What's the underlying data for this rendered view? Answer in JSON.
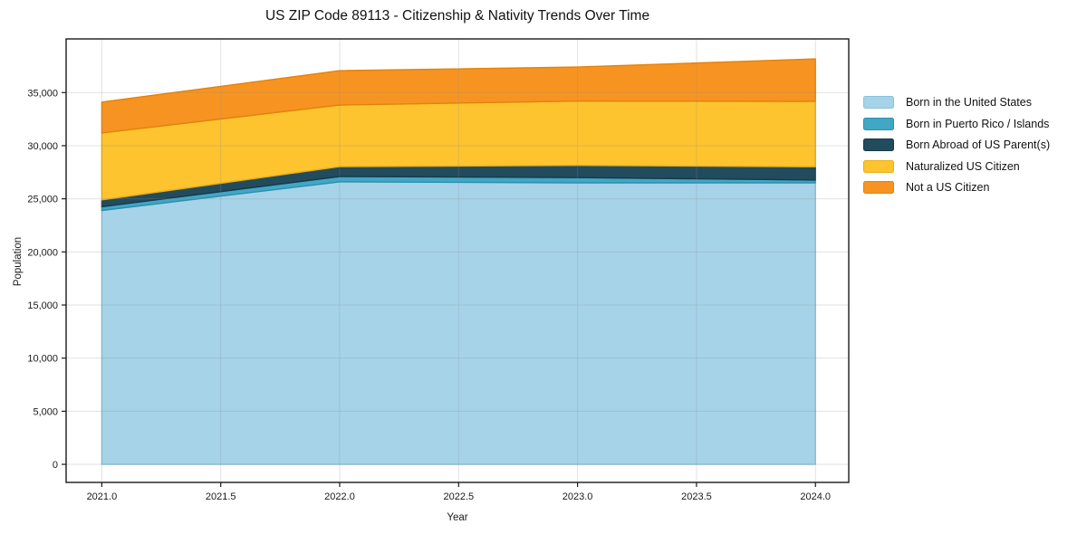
{
  "chart_data": {
    "type": "area",
    "stacked": true,
    "title": "US ZIP Code 89113 - Citizenship & Nativity Trends Over Time",
    "xlabel": "Year",
    "ylabel": "Population",
    "x": [
      2021,
      2022,
      2023,
      2024
    ],
    "series": [
      {
        "name": "Born in the United States",
        "color": "#a6d3e8",
        "edge": "#8ac2dc",
        "values": [
          23900,
          26600,
          26500,
          26500
        ]
      },
      {
        "name": "Born in Puerto Rico / Islands",
        "color": "#41a7c5",
        "edge": "#2b8fb0",
        "values": [
          350,
          500,
          500,
          270
        ]
      },
      {
        "name": "Born Abroad of US Parent(s)",
        "color": "#234b5e",
        "edge": "#16394a",
        "values": [
          650,
          930,
          1150,
          1250
        ]
      },
      {
        "name": "Naturalized US Citizen",
        "color": "#fdc42f",
        "edge": "#eaaf14",
        "values": [
          6300,
          5800,
          6050,
          6150
        ]
      },
      {
        "name": "Not a US Citizen",
        "color": "#f79421",
        "edge": "#e2820c",
        "values": [
          2900,
          3230,
          3200,
          4000
        ]
      }
    ],
    "xticks": [
      "2021.0",
      "2021.5",
      "2022.0",
      "2022.5",
      "2023.0",
      "2023.5",
      "2024.0"
    ],
    "xtick_values": [
      2021,
      2021.5,
      2022,
      2022.5,
      2023,
      2023.5,
      2024
    ],
    "yticks": [
      "0",
      "5,000",
      "10,000",
      "15,000",
      "20,000",
      "25,000",
      "30,000",
      "35,000"
    ],
    "ytick_values": [
      0,
      5000,
      10000,
      15000,
      20000,
      25000,
      30000,
      35000
    ],
    "xlim": [
      2020.85,
      2024.14
    ],
    "ylim": [
      -1700,
      40050
    ],
    "grid": true,
    "legend_position": "right-outside",
    "axes_color": "#1a1a1a",
    "grid_color": "#8c8c8c"
  }
}
